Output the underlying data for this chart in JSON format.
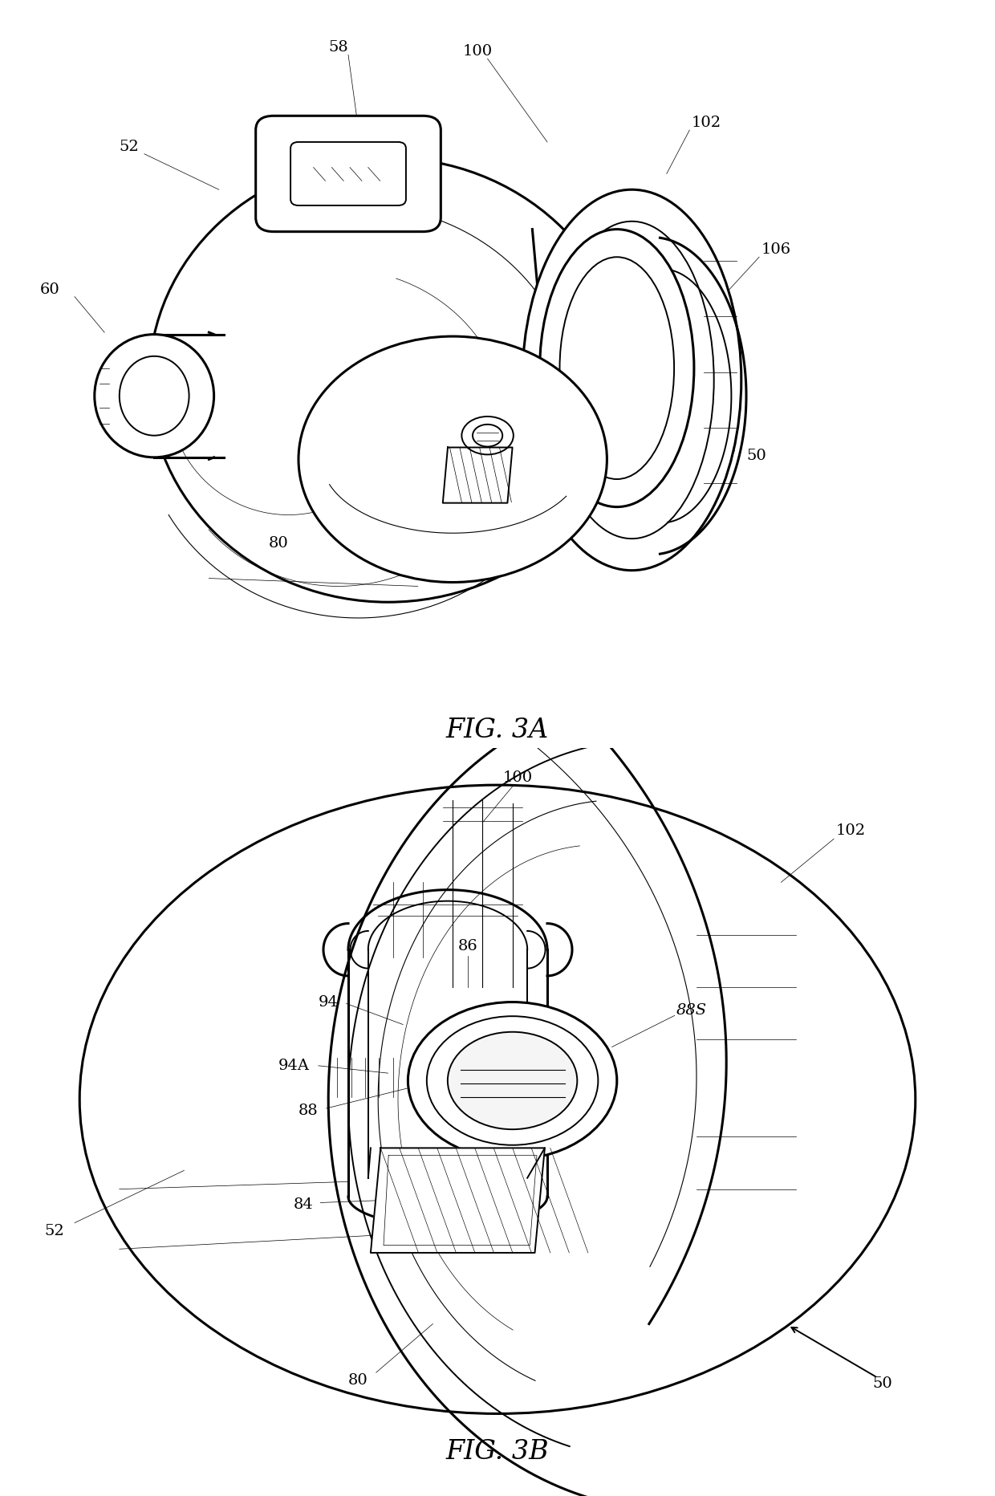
{
  "fig_width": 12.4,
  "fig_height": 18.65,
  "bg": "#ffffff",
  "lc": "#000000",
  "lw_thick": 2.2,
  "lw_med": 1.4,
  "lw_thin": 0.8,
  "lw_vthin": 0.5,
  "fs_label": 14,
  "fs_fig": 24,
  "fig3a_title": "FIG. 3A",
  "fig3b_title": "FIG. 3B"
}
